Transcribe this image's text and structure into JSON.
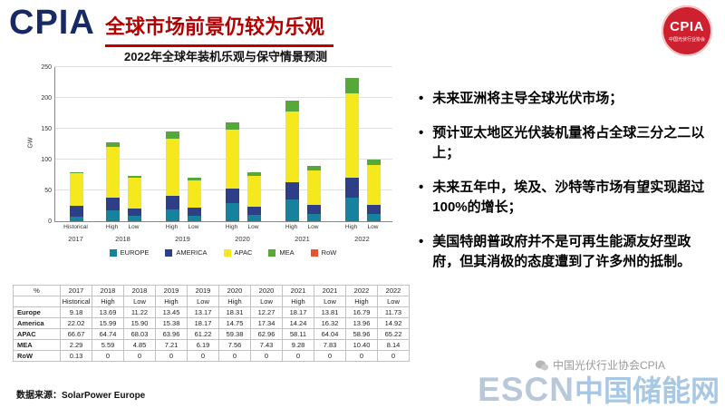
{
  "colors": {
    "title_red": "#b30000",
    "logo_navy": "#182a66",
    "badge_red": "#cf2030"
  },
  "header": {
    "logo_text": "CPIA",
    "title": "全球市场前景仍较为乐观",
    "badge_text": "CPIA",
    "badge_subtext": "中国光伏行业协会"
  },
  "chart_data": {
    "type": "bar",
    "stacked": true,
    "title": "2022年全球年装机乐观与保守情景预测",
    "ylabel": "GW",
    "ylim": [
      0,
      250
    ],
    "yticks": [
      0,
      50,
      100,
      150,
      200,
      250
    ],
    "grid": true,
    "legend_position": "bottom",
    "columns": [
      {
        "year": "2017",
        "scenario": "Historical",
        "total_gw": 80
      },
      {
        "year": "2018",
        "scenario": "High",
        "total_gw": 128
      },
      {
        "year": "2018",
        "scenario": "Low",
        "total_gw": 74
      },
      {
        "year": "2019",
        "scenario": "High",
        "total_gw": 145
      },
      {
        "year": "2019",
        "scenario": "Low",
        "total_gw": 70
      },
      {
        "year": "2020",
        "scenario": "High",
        "total_gw": 160
      },
      {
        "year": "2020",
        "scenario": "Low",
        "total_gw": 80
      },
      {
        "year": "2021",
        "scenario": "High",
        "total_gw": 196
      },
      {
        "year": "2021",
        "scenario": "Low",
        "total_gw": 90
      },
      {
        "year": "2022",
        "scenario": "High",
        "total_gw": 232
      },
      {
        "year": "2022",
        "scenario": "Low",
        "total_gw": 100
      }
    ],
    "series": [
      {
        "name": "EUROPE",
        "color": "#17829e",
        "shares_pct": [
          9.18,
          13.69,
          11.22,
          13.45,
          13.17,
          18.31,
          12.27,
          18.17,
          13.81,
          16.79,
          11.73
        ]
      },
      {
        "name": "AMERICA",
        "color": "#2f3f87",
        "shares_pct": [
          22.02,
          15.99,
          15.9,
          15.38,
          18.17,
          14.75,
          17.34,
          14.24,
          16.32,
          13.96,
          14.92
        ]
      },
      {
        "name": "APAC",
        "color": "#f5e81c",
        "shares_pct": [
          66.67,
          64.74,
          68.03,
          63.96,
          61.22,
          59.38,
          62.96,
          58.11,
          64.04,
          58.96,
          65.22
        ]
      },
      {
        "name": "MEA",
        "color": "#56a838",
        "shares_pct": [
          2.29,
          5.59,
          4.85,
          7.21,
          6.19,
          7.56,
          7.43,
          9.28,
          7.83,
          10.4,
          8.14
        ]
      },
      {
        "name": "RoW",
        "color": "#e8532d",
        "shares_pct": [
          0.13,
          0,
          0,
          0,
          0,
          0,
          0,
          0,
          0,
          0,
          0
        ]
      }
    ]
  },
  "table": {
    "corner_label": "%",
    "years": [
      "2017",
      "2018",
      "2018",
      "2019",
      "2019",
      "2020",
      "2020",
      "2021",
      "2021",
      "2022",
      "2022"
    ],
    "scenarios": [
      "Historical",
      "High",
      "Low",
      "High",
      "Low",
      "High",
      "Low",
      "High",
      "Low",
      "High",
      "Low"
    ],
    "rows": [
      {
        "label": "Europe",
        "values": [
          "9.18",
          "13.69",
          "11.22",
          "13.45",
          "13.17",
          "18.31",
          "12.27",
          "18.17",
          "13.81",
          "16.79",
          "11.73"
        ]
      },
      {
        "label": "America",
        "values": [
          "22.02",
          "15.99",
          "15.90",
          "15.38",
          "18.17",
          "14.75",
          "17.34",
          "14.24",
          "16.32",
          "13.96",
          "14.92"
        ]
      },
      {
        "label": "APAC",
        "values": [
          "66.67",
          "64.74",
          "68.03",
          "63.96",
          "61.22",
          "59.38",
          "62.96",
          "58.11",
          "64.04",
          "58.96",
          "65.22"
        ]
      },
      {
        "label": "MEA",
        "values": [
          "2.29",
          "5.59",
          "4.85",
          "7.21",
          "6.19",
          "7.56",
          "7.43",
          "9.28",
          "7.83",
          "10.40",
          "8.14"
        ]
      },
      {
        "label": "RoW",
        "values": [
          "0.13",
          "0",
          "0",
          "0",
          "0",
          "0",
          "0",
          "0",
          "0",
          "0",
          "0"
        ]
      }
    ]
  },
  "bullets": [
    "未来亚洲将主导全球光伏市场；",
    "预计亚太地区光伏装机量将占全球三分之二以上；",
    "未来五年中，埃及、沙特等市场有望实现超过100%的增长；",
    "美国特朗普政府并不是可再生能源友好型政府，但其消极的态度遭到了许多州的抵制。"
  ],
  "footer": {
    "source": "数据来源：SolarPower Europe"
  },
  "watermark": {
    "wechat_line": "中国光伏行业协会CPIA",
    "escn": "ESCN",
    "escn_cn": "中国储能网"
  }
}
